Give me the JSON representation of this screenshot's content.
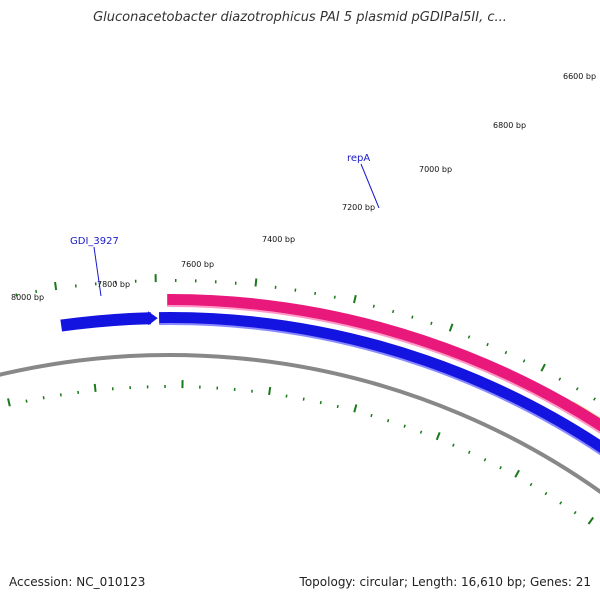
{
  "title": "Gluconacetobacter diazotrophicus PAI 5 plasmid pGDIPal5II, c...",
  "footer": {
    "accession": "Accession: NC_010123",
    "summary": "Topology: circular; Length: 16,610 bp; Genes: 21"
  },
  "scale_labels": [
    "6600 bp",
    "6800 bp",
    "7000 bp",
    "7200 bp",
    "7400 bp",
    "7600 bp",
    "7800 bp",
    "8000 bp"
  ],
  "gene_labels": [
    "repA",
    "GDI_3927"
  ],
  "colors": {
    "tick": "#1a7a1a",
    "forward_track": "#e8197a",
    "reverse_track": "#1414e0",
    "backbone": "#888888",
    "feature_other": "#f0e0a0",
    "gene_label": "#1a1ac8"
  }
}
